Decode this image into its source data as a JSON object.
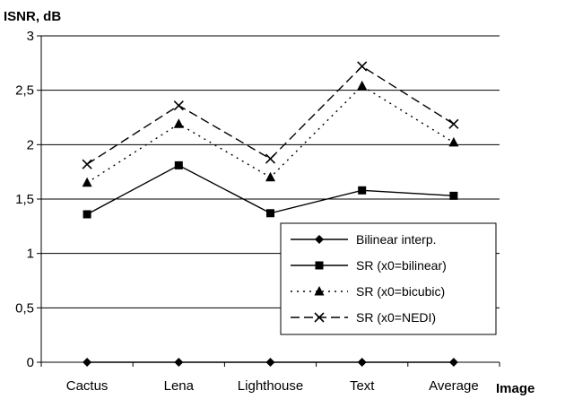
{
  "chart_data": {
    "type": "line",
    "ylabel": "ISNR, dB",
    "xlabel": "Image",
    "categories": [
      "Cactus",
      "Lena",
      "Lighthouse",
      "Text",
      "Average"
    ],
    "y_ticks": [
      "0",
      "0,5",
      "1",
      "1,5",
      "2",
      "2,5",
      "3"
    ],
    "ylim": [
      0,
      3
    ],
    "grid": "horizontal",
    "legend_position": "bottom-right",
    "series": [
      {
        "name": "Bilinear interp.",
        "values": [
          0,
          0,
          0,
          0,
          0
        ],
        "marker": "diamond",
        "dash": "solid"
      },
      {
        "name": "SR (x0=bilinear)",
        "values": [
          1.36,
          1.81,
          1.37,
          1.58,
          1.53
        ],
        "marker": "square",
        "dash": "solid"
      },
      {
        "name": "SR (x0=bicubic)",
        "values": [
          1.65,
          2.19,
          1.7,
          2.54,
          2.02
        ],
        "marker": "triangle",
        "dash": "dotted"
      },
      {
        "name": "SR (x0=NEDI)",
        "values": [
          1.82,
          2.36,
          1.87,
          2.72,
          2.19
        ],
        "marker": "cross",
        "dash": "dashed"
      }
    ]
  }
}
